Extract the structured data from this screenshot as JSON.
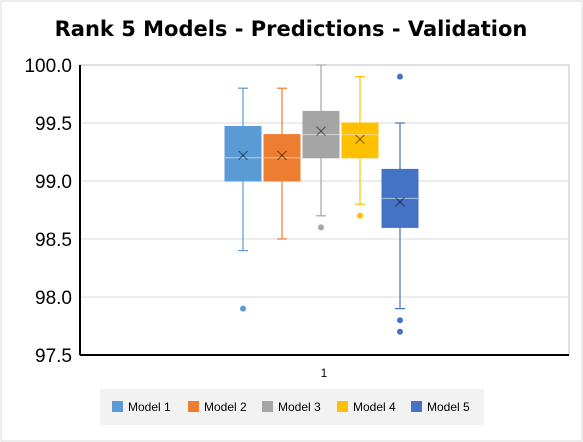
{
  "chart_data": {
    "type": "box",
    "title": "Rank 5 Models - Predictions - Validation",
    "xlabel": "",
    "ylabel": "",
    "ylim": [
      97.5,
      100.0
    ],
    "yticks": [
      "97.5",
      "98.0",
      "98.5",
      "99.0",
      "99.5",
      "100.0"
    ],
    "x_category_label": "1",
    "grid": true,
    "legend_position": "bottom",
    "series": [
      {
        "name": "Model 1",
        "color": "#5B9BD5",
        "whisker_low": 98.4,
        "q1": 99.0,
        "median": 99.2,
        "q3": 99.47,
        "whisker_high": 99.8,
        "mean": 99.22,
        "outliers": [
          97.9
        ]
      },
      {
        "name": "Model 2",
        "color": "#ED7D31",
        "whisker_low": 98.5,
        "q1": 99.0,
        "median": 99.2,
        "q3": 99.4,
        "whisker_high": 99.8,
        "mean": 99.22,
        "outliers": []
      },
      {
        "name": "Model 3",
        "color": "#A5A5A5",
        "whisker_low": 98.7,
        "q1": 99.2,
        "median": 99.4,
        "q3": 99.6,
        "whisker_high": 100.0,
        "mean": 99.43,
        "outliers": [
          98.6
        ]
      },
      {
        "name": "Model 4",
        "color": "#FFC000",
        "whisker_low": 98.8,
        "q1": 99.2,
        "median": 99.4,
        "q3": 99.5,
        "whisker_high": 99.9,
        "mean": 99.36,
        "outliers": [
          98.7
        ]
      },
      {
        "name": "Model 5",
        "color": "#4472C4",
        "whisker_low": 97.9,
        "q1": 98.6,
        "median": 98.85,
        "q3": 99.1,
        "whisker_high": 99.5,
        "mean": 98.82,
        "outliers": [
          99.9,
          97.8,
          97.7
        ]
      }
    ]
  }
}
